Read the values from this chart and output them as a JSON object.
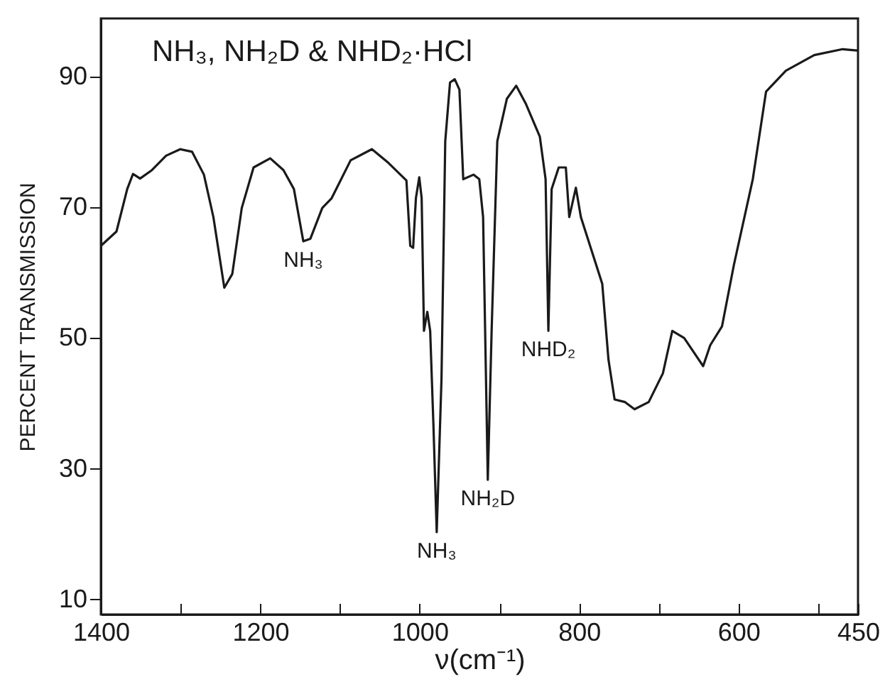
{
  "chart_data": {
    "type": "line",
    "title": "NH₃, NH₂D & NHD₂·HCl",
    "xlabel": "ν(cm⁻¹)",
    "ylabel": "PERCENT TRANSMISSION",
    "xlim": [
      1400,
      450
    ],
    "ylim": [
      7.7,
      98.9
    ],
    "xticks": [
      1400,
      {
        "value": 1300,
        "label": null
      },
      1200,
      {
        "value": 1100,
        "label": null
      },
      1000,
      {
        "value": 900,
        "label": null
      },
      800,
      {
        "value": 700,
        "label": null
      },
      600,
      {
        "value": 500,
        "label": null
      },
      450
    ],
    "yticks": [
      10,
      30,
      50,
      70,
      90
    ],
    "grid": false,
    "x": [
      1400,
      1380.4,
      1366.9,
      1359.7,
      1350.8,
      1335.9,
      1318.1,
      1300.3,
      1285.5,
      1270.7,
      1258.8,
      1245.1,
      1235.1,
      1223.2,
      1208.4,
      1187.5,
      1170.9,
      1157.8,
      1146,
      1137.1,
      1122.2,
      1110.4,
      1086.6,
      1059.9,
      1039.2,
      1016.6,
      1011.8,
      1008.2,
      1004.7,
      1000.5,
      997.5,
      994.6,
      990.4,
      986.8,
      982.7,
      978.6,
      972.6,
      967.9,
      961.9,
      956,
      950.1,
      945.3,
      932.3,
      925.2,
      920.4,
      914.5,
      909.7,
      902.6,
      890.6,
      878.9,
      867,
      849.2,
      842,
      838.5,
      834.4,
      825.5,
      816.6,
      812.3,
      804,
      797.7,
      770.9,
      763.1,
      755.4,
      742.3,
      730.4,
      712.6,
      694.8,
      683,
      668.1,
      644.3,
      635.4,
      620.6,
      605.7,
      582,
      565.4,
      540.5,
      504.9,
      469.3,
      451.5
    ],
    "series": [
      {
        "color": "#1a1a1a",
        "values": [
          64.1,
          66.3,
          72.8,
          75.1,
          74.4,
          75.7,
          77.9,
          78.9,
          78.5,
          75,
          68.5,
          57.7,
          59.8,
          69.9,
          76.1,
          77.5,
          75.7,
          72.8,
          64.8,
          65.2,
          69.9,
          71.4,
          77.2,
          78.9,
          76.8,
          74.1,
          64.1,
          63.8,
          71.4,
          74.6,
          71.4,
          51.1,
          54,
          51.1,
          36.6,
          20.3,
          43.8,
          80.1,
          89.1,
          89.6,
          88,
          74.3,
          75,
          74.3,
          68.5,
          28.3,
          51.1,
          80.1,
          86.6,
          88.6,
          85.9,
          80.8,
          74.3,
          51.1,
          72.8,
          76.1,
          76.1,
          68.5,
          73,
          68.5,
          58.3,
          46.7,
          40.6,
          40.2,
          39.1,
          40.2,
          44.6,
          51.1,
          50,
          45.7,
          48.9,
          51.8,
          61.2,
          74.3,
          87.7,
          90.9,
          93.3,
          94.2,
          94
        ]
      }
    ],
    "annotations": [
      {
        "text": "NH₃",
        "x": 1146,
        "y": 64.8
      },
      {
        "text": "NH₃",
        "x": 978.6,
        "y": 20.3
      },
      {
        "text": "NH₂D",
        "x": 914.5,
        "y": 28.3
      },
      {
        "text": "NHD₂",
        "x": 838.5,
        "y": 51.1
      }
    ]
  }
}
